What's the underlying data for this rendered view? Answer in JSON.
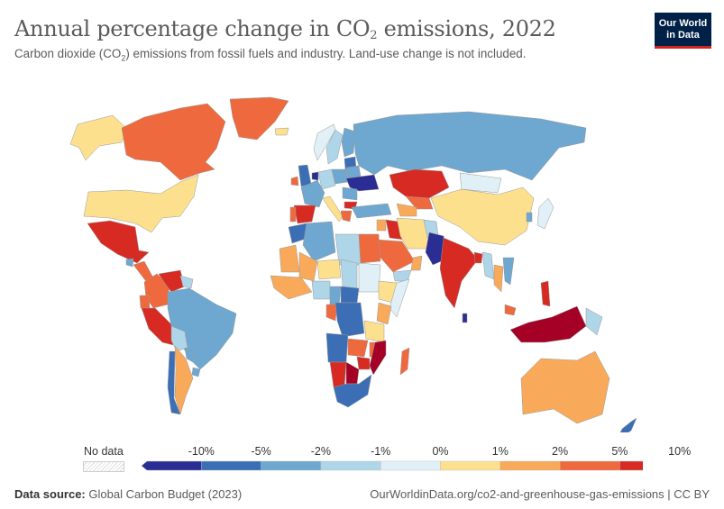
{
  "header": {
    "title_pre": "Annual percentage change in CO",
    "title_sub": "2",
    "title_post": " emissions, 2022",
    "subtitle_pre": "Carbon dioxide (CO",
    "subtitle_sub": "2",
    "subtitle_post": ") emissions from fossil fuels and industry. Land-use change is not included.",
    "logo_line1": "Our World",
    "logo_line2": "in Data"
  },
  "legend": {
    "no_data_label": "No data",
    "ticks": [
      "-10%",
      "-5%",
      "-2%",
      "-1%",
      "0%",
      "1%",
      "2%",
      "5%",
      "10%"
    ],
    "bins": [
      {
        "range": "< -10%",
        "color": "#2a2d93"
      },
      {
        "range": "-10% to -5%",
        "color": "#3b6eb4"
      },
      {
        "range": "-5% to -2%",
        "color": "#6ea7cf"
      },
      {
        "range": "-2% to -1%",
        "color": "#aed5e8"
      },
      {
        "range": "-1% to 0%",
        "color": "#e1f0f7"
      },
      {
        "range": "0% to 1%",
        "color": "#fde08e"
      },
      {
        "range": "1% to 2%",
        "color": "#f9a95a"
      },
      {
        "range": "2% to 5%",
        "color": "#ee6a3e"
      },
      {
        "range": "5% to 10%",
        "color": "#d62a22"
      },
      {
        "range": "> 10%",
        "color": "#a50026"
      }
    ]
  },
  "map_data": {
    "metric": "Annual percentage change in CO2 emissions",
    "year": 2022,
    "countries": [
      {
        "name": "Canada",
        "bin": 7
      },
      {
        "name": "Greenland",
        "bin": 7
      },
      {
        "name": "Alaska (USA)",
        "bin": 5
      },
      {
        "name": "United States",
        "bin": 5
      },
      {
        "name": "Mexico",
        "bin": 8
      },
      {
        "name": "Guatemala",
        "bin": 2
      },
      {
        "name": "Central America",
        "bin": 7
      },
      {
        "name": "Colombia",
        "bin": 7
      },
      {
        "name": "Venezuela",
        "bin": 8
      },
      {
        "name": "Guyana",
        "bin": 3
      },
      {
        "name": "Ecuador",
        "bin": 7
      },
      {
        "name": "Peru",
        "bin": 8
      },
      {
        "name": "Brazil",
        "bin": 2
      },
      {
        "name": "Bolivia",
        "bin": 3
      },
      {
        "name": "Paraguay",
        "bin": 2
      },
      {
        "name": "Chile",
        "bin": 1
      },
      {
        "name": "Argentina",
        "bin": 6
      },
      {
        "name": "Uruguay",
        "bin": 2
      },
      {
        "name": "Iceland",
        "bin": 5
      },
      {
        "name": "Ireland",
        "bin": 7
      },
      {
        "name": "United Kingdom",
        "bin": 1
      },
      {
        "name": "Netherlands",
        "bin": 0
      },
      {
        "name": "France",
        "bin": 2
      },
      {
        "name": "Spain",
        "bin": 8
      },
      {
        "name": "Portugal",
        "bin": 7
      },
      {
        "name": "Italy",
        "bin": 5
      },
      {
        "name": "Germany",
        "bin": 3
      },
      {
        "name": "Poland",
        "bin": 2
      },
      {
        "name": "Norway",
        "bin": 4
      },
      {
        "name": "Sweden",
        "bin": 3
      },
      {
        "name": "Finland",
        "bin": 2
      },
      {
        "name": "Baltics",
        "bin": 1
      },
      {
        "name": "Belarus",
        "bin": 2
      },
      {
        "name": "Ukraine",
        "bin": 0
      },
      {
        "name": "Romania",
        "bin": 2
      },
      {
        "name": "Bulgaria",
        "bin": 8
      },
      {
        "name": "Greece",
        "bin": 7
      },
      {
        "name": "Turkey",
        "bin": 2
      },
      {
        "name": "Russia",
        "bin": 2
      },
      {
        "name": "Kazakhstan",
        "bin": 8
      },
      {
        "name": "Uzbekistan",
        "bin": 7
      },
      {
        "name": "Turkmenistan",
        "bin": 6
      },
      {
        "name": "Mongolia",
        "bin": 4
      },
      {
        "name": "China",
        "bin": 5
      },
      {
        "name": "Japan",
        "bin": 4
      },
      {
        "name": "South Korea",
        "bin": 2
      },
      {
        "name": "Iran",
        "bin": 5
      },
      {
        "name": "Iraq",
        "bin": 8
      },
      {
        "name": "Syria",
        "bin": 6
      },
      {
        "name": "Saudi Arabia",
        "bin": 7
      },
      {
        "name": "Oman",
        "bin": 6
      },
      {
        "name": "Yemen",
        "bin": 3
      },
      {
        "name": "Afghanistan",
        "bin": 3
      },
      {
        "name": "Pakistan",
        "bin": 0
      },
      {
        "name": "India",
        "bin": 8
      },
      {
        "name": "Sri Lanka",
        "bin": 0
      },
      {
        "name": "Bangladesh",
        "bin": 8
      },
      {
        "name": "Myanmar",
        "bin": 3
      },
      {
        "name": "Thailand",
        "bin": 6
      },
      {
        "name": "Vietnam",
        "bin": 2
      },
      {
        "name": "Philippines",
        "bin": 8
      },
      {
        "name": "Malaysia",
        "bin": 7
      },
      {
        "name": "Indonesia",
        "bin": 9
      },
      {
        "name": "Papua New Guinea",
        "bin": 3
      },
      {
        "name": "Australia",
        "bin": 6
      },
      {
        "name": "New Zealand",
        "bin": 1
      },
      {
        "name": "Morocco",
        "bin": 1
      },
      {
        "name": "Algeria",
        "bin": 2
      },
      {
        "name": "Libya",
        "bin": 3
      },
      {
        "name": "Egypt",
        "bin": 7
      },
      {
        "name": "Mauritania",
        "bin": 6
      },
      {
        "name": "Mali",
        "bin": 6
      },
      {
        "name": "Niger",
        "bin": 5
      },
      {
        "name": "Chad",
        "bin": 3
      },
      {
        "name": "Sudan",
        "bin": 4
      },
      {
        "name": "Ethiopia",
        "bin": 5
      },
      {
        "name": "Somalia",
        "bin": 4
      },
      {
        "name": "West Africa",
        "bin": 6
      },
      {
        "name": "Nigeria",
        "bin": 3
      },
      {
        "name": "Cameroon",
        "bin": 2
      },
      {
        "name": "Central African Republic",
        "bin": 1
      },
      {
        "name": "DR Congo",
        "bin": 1
      },
      {
        "name": "Gabon/Congo",
        "bin": 7
      },
      {
        "name": "Kenya",
        "bin": 6
      },
      {
        "name": "Tanzania",
        "bin": 5
      },
      {
        "name": "Angola",
        "bin": 1
      },
      {
        "name": "Zambia",
        "bin": 7
      },
      {
        "name": "Malawi",
        "bin": 7
      },
      {
        "name": "Mozambique",
        "bin": 9
      },
      {
        "name": "Zimbabwe",
        "bin": 8
      },
      {
        "name": "Namibia",
        "bin": 8
      },
      {
        "name": "Botswana",
        "bin": 9
      },
      {
        "name": "South Africa",
        "bin": 1
      },
      {
        "name": "Madagascar",
        "bin": 7
      }
    ]
  },
  "footer": {
    "source_label": "Data source:",
    "source_value": "Global Carbon Budget (2023)",
    "url": "OurWorldinData.org/co2-and-greenhouse-gas-emissions | CC BY"
  }
}
